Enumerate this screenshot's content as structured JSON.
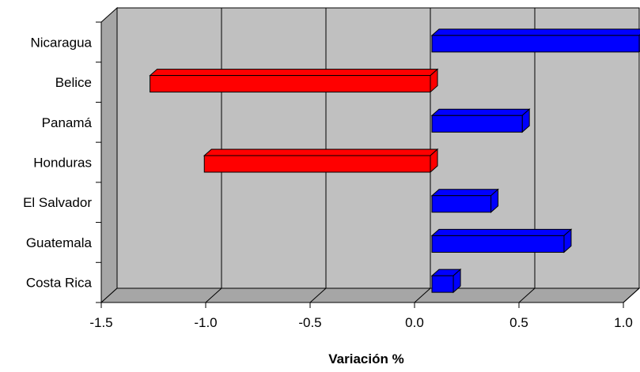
{
  "chart_data": {
    "type": "bar",
    "orientation": "horizontal",
    "style": "3d",
    "categories": [
      "Costa Rica",
      "Guatemala",
      "El Salvador",
      "Honduras",
      "Panamá",
      "Belice",
      "Nicaragua"
    ],
    "values": [
      0.11,
      0.64,
      0.29,
      -1.09,
      0.44,
      -1.35,
      1.0
    ],
    "xlabel": "Variación %",
    "xlim": [
      -1.5,
      1.0
    ],
    "xticks": [
      "-1.5",
      "-1.0",
      "-0.5",
      "0.0",
      "0.5",
      "1.0"
    ],
    "grid": "vertical",
    "colors": {
      "positive": "#0000ff",
      "negative": "#ff0000",
      "plot_background": "#c0c0c0",
      "wall": "#a6a6a6",
      "gridline": "#000000"
    }
  }
}
